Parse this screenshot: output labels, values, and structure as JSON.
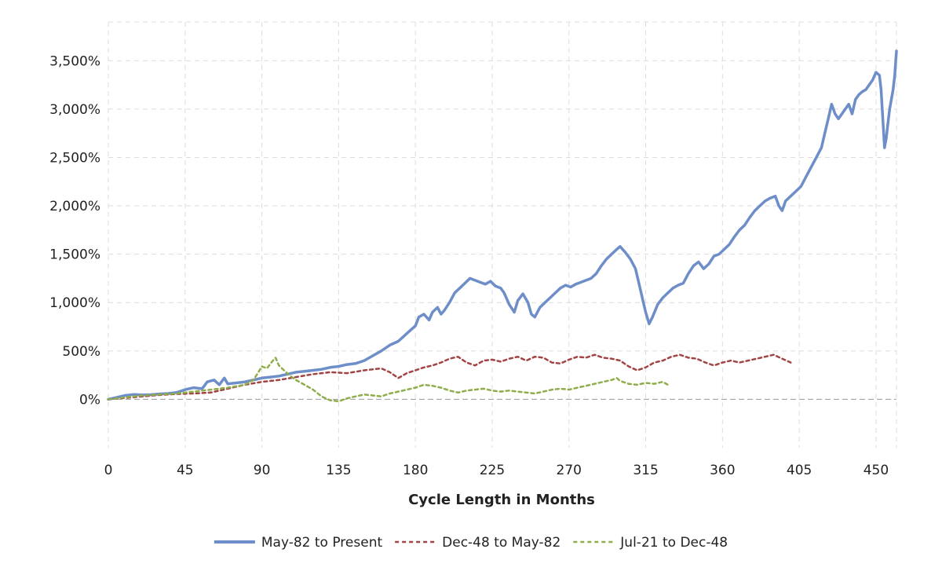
{
  "colors": {
    "background": "#ffffff",
    "grid": "#dcdcdc",
    "zero_line": "#9a9a9a",
    "series_1": "#6d8ec8",
    "series_2": "#a24444",
    "series_3": "#8fad4b"
  },
  "chart_data": {
    "type": "line",
    "title": "",
    "xlabel": "Cycle Length in Months",
    "ylabel": "",
    "xlim": [
      0,
      462
    ],
    "ylim": [
      -500,
      3900
    ],
    "x_ticks": [
      0,
      45,
      90,
      135,
      180,
      225,
      270,
      315,
      360,
      405,
      450
    ],
    "x_tick_labels": [
      "0",
      "45",
      "90",
      "135",
      "180",
      "225",
      "270",
      "315",
      "360",
      "405",
      "450"
    ],
    "y_ticks": [
      0,
      500,
      1000,
      1500,
      2000,
      2500,
      3000,
      3500
    ],
    "y_tick_labels": [
      "0%",
      "500%",
      "1,000%",
      "1,500%",
      "2,000%",
      "2,500%",
      "3,000%",
      "3,500%"
    ],
    "grid": true,
    "legend_position": "bottom",
    "series": [
      {
        "name": "May-82 to Present",
        "style": "solid",
        "color": "#6d8ec8",
        "points": [
          [
            0,
            0
          ],
          [
            5,
            20
          ],
          [
            10,
            40
          ],
          [
            15,
            50
          ],
          [
            20,
            45
          ],
          [
            25,
            48
          ],
          [
            30,
            55
          ],
          [
            35,
            60
          ],
          [
            40,
            70
          ],
          [
            45,
            100
          ],
          [
            50,
            120
          ],
          [
            55,
            110
          ],
          [
            58,
            180
          ],
          [
            62,
            200
          ],
          [
            65,
            150
          ],
          [
            68,
            220
          ],
          [
            70,
            160
          ],
          [
            75,
            170
          ],
          [
            80,
            180
          ],
          [
            85,
            200
          ],
          [
            90,
            220
          ],
          [
            95,
            230
          ],
          [
            100,
            240
          ],
          [
            105,
            260
          ],
          [
            110,
            280
          ],
          [
            115,
            290
          ],
          [
            120,
            300
          ],
          [
            125,
            310
          ],
          [
            130,
            330
          ],
          [
            135,
            340
          ],
          [
            140,
            360
          ],
          [
            145,
            370
          ],
          [
            150,
            400
          ],
          [
            155,
            450
          ],
          [
            160,
            500
          ],
          [
            165,
            560
          ],
          [
            170,
            600
          ],
          [
            175,
            680
          ],
          [
            180,
            760
          ],
          [
            182,
            850
          ],
          [
            185,
            880
          ],
          [
            188,
            820
          ],
          [
            190,
            900
          ],
          [
            193,
            950
          ],
          [
            195,
            880
          ],
          [
            197,
            920
          ],
          [
            200,
            1000
          ],
          [
            203,
            1100
          ],
          [
            206,
            1150
          ],
          [
            209,
            1200
          ],
          [
            212,
            1250
          ],
          [
            215,
            1230
          ],
          [
            218,
            1210
          ],
          [
            221,
            1190
          ],
          [
            224,
            1220
          ],
          [
            227,
            1170
          ],
          [
            230,
            1150
          ],
          [
            232,
            1100
          ],
          [
            235,
            980
          ],
          [
            238,
            900
          ],
          [
            240,
            1020
          ],
          [
            243,
            1090
          ],
          [
            246,
            1000
          ],
          [
            248,
            880
          ],
          [
            250,
            850
          ],
          [
            253,
            950
          ],
          [
            256,
            1000
          ],
          [
            259,
            1050
          ],
          [
            262,
            1100
          ],
          [
            265,
            1150
          ],
          [
            268,
            1180
          ],
          [
            271,
            1160
          ],
          [
            274,
            1190
          ],
          [
            277,
            1210
          ],
          [
            280,
            1230
          ],
          [
            283,
            1250
          ],
          [
            286,
            1300
          ],
          [
            289,
            1380
          ],
          [
            292,
            1450
          ],
          [
            295,
            1500
          ],
          [
            298,
            1550
          ],
          [
            300,
            1580
          ],
          [
            303,
            1520
          ],
          [
            306,
            1450
          ],
          [
            309,
            1350
          ],
          [
            311,
            1200
          ],
          [
            313,
            1050
          ],
          [
            315,
            900
          ],
          [
            317,
            780
          ],
          [
            319,
            850
          ],
          [
            322,
            980
          ],
          [
            325,
            1050
          ],
          [
            328,
            1100
          ],
          [
            331,
            1150
          ],
          [
            334,
            1180
          ],
          [
            337,
            1200
          ],
          [
            340,
            1300
          ],
          [
            343,
            1380
          ],
          [
            346,
            1420
          ],
          [
            349,
            1350
          ],
          [
            352,
            1400
          ],
          [
            355,
            1480
          ],
          [
            358,
            1500
          ],
          [
            361,
            1550
          ],
          [
            364,
            1600
          ],
          [
            367,
            1680
          ],
          [
            370,
            1750
          ],
          [
            373,
            1800
          ],
          [
            376,
            1880
          ],
          [
            379,
            1950
          ],
          [
            382,
            2000
          ],
          [
            385,
            2050
          ],
          [
            388,
            2080
          ],
          [
            391,
            2100
          ],
          [
            393,
            2000
          ],
          [
            395,
            1950
          ],
          [
            397,
            2050
          ],
          [
            400,
            2100
          ],
          [
            403,
            2150
          ],
          [
            406,
            2200
          ],
          [
            409,
            2300
          ],
          [
            412,
            2400
          ],
          [
            415,
            2500
          ],
          [
            418,
            2600
          ],
          [
            420,
            2750
          ],
          [
            422,
            2900
          ],
          [
            424,
            3050
          ],
          [
            426,
            2950
          ],
          [
            428,
            2900
          ],
          [
            430,
            2950
          ],
          [
            432,
            3000
          ],
          [
            434,
            3050
          ],
          [
            436,
            2950
          ],
          [
            438,
            3100
          ],
          [
            440,
            3150
          ],
          [
            442,
            3180
          ],
          [
            444,
            3200
          ],
          [
            446,
            3250
          ],
          [
            448,
            3300
          ],
          [
            450,
            3380
          ],
          [
            452,
            3350
          ],
          [
            453,
            3200
          ],
          [
            454,
            2900
          ],
          [
            455,
            2600
          ],
          [
            456,
            2700
          ],
          [
            457,
            2850
          ],
          [
            458,
            3000
          ],
          [
            459,
            3100
          ],
          [
            460,
            3200
          ],
          [
            461,
            3350
          ],
          [
            462,
            3600
          ]
        ]
      },
      {
        "name": "Dec-48 to May-82",
        "style": "dashed",
        "color": "#a24444",
        "points": [
          [
            0,
            0
          ],
          [
            10,
            15
          ],
          [
            20,
            30
          ],
          [
            30,
            45
          ],
          [
            40,
            55
          ],
          [
            50,
            60
          ],
          [
            60,
            70
          ],
          [
            70,
            110
          ],
          [
            80,
            150
          ],
          [
            90,
            180
          ],
          [
            100,
            200
          ],
          [
            110,
            230
          ],
          [
            120,
            260
          ],
          [
            130,
            280
          ],
          [
            140,
            270
          ],
          [
            150,
            300
          ],
          [
            160,
            320
          ],
          [
            165,
            280
          ],
          [
            170,
            220
          ],
          [
            175,
            270
          ],
          [
            180,
            300
          ],
          [
            185,
            330
          ],
          [
            190,
            350
          ],
          [
            195,
            380
          ],
          [
            200,
            420
          ],
          [
            205,
            440
          ],
          [
            210,
            380
          ],
          [
            215,
            350
          ],
          [
            220,
            400
          ],
          [
            225,
            410
          ],
          [
            230,
            390
          ],
          [
            235,
            420
          ],
          [
            240,
            440
          ],
          [
            245,
            400
          ],
          [
            250,
            440
          ],
          [
            255,
            430
          ],
          [
            260,
            380
          ],
          [
            265,
            370
          ],
          [
            270,
            410
          ],
          [
            275,
            440
          ],
          [
            280,
            430
          ],
          [
            285,
            460
          ],
          [
            290,
            430
          ],
          [
            295,
            420
          ],
          [
            300,
            400
          ],
          [
            305,
            340
          ],
          [
            310,
            300
          ],
          [
            315,
            330
          ],
          [
            320,
            380
          ],
          [
            325,
            400
          ],
          [
            330,
            440
          ],
          [
            335,
            460
          ],
          [
            340,
            430
          ],
          [
            345,
            420
          ],
          [
            350,
            380
          ],
          [
            355,
            350
          ],
          [
            360,
            380
          ],
          [
            365,
            400
          ],
          [
            370,
            380
          ],
          [
            375,
            400
          ],
          [
            380,
            420
          ],
          [
            385,
            440
          ],
          [
            390,
            460
          ],
          [
            395,
            420
          ],
          [
            400,
            380
          ]
        ]
      },
      {
        "name": "Jul-21 to Dec-48",
        "style": "dashed",
        "color": "#8fad4b",
        "points": [
          [
            0,
            0
          ],
          [
            10,
            20
          ],
          [
            20,
            40
          ],
          [
            30,
            50
          ],
          [
            40,
            60
          ],
          [
            50,
            80
          ],
          [
            60,
            100
          ],
          [
            70,
            120
          ],
          [
            80,
            150
          ],
          [
            85,
            200
          ],
          [
            88,
            280
          ],
          [
            90,
            340
          ],
          [
            93,
            320
          ],
          [
            96,
            390
          ],
          [
            98,
            430
          ],
          [
            100,
            350
          ],
          [
            103,
            300
          ],
          [
            106,
            250
          ],
          [
            110,
            200
          ],
          [
            115,
            150
          ],
          [
            120,
            100
          ],
          [
            125,
            30
          ],
          [
            130,
            -10
          ],
          [
            135,
            -20
          ],
          [
            140,
            10
          ],
          [
            145,
            30
          ],
          [
            150,
            50
          ],
          [
            155,
            40
          ],
          [
            160,
            30
          ],
          [
            165,
            60
          ],
          [
            170,
            80
          ],
          [
            175,
            100
          ],
          [
            180,
            120
          ],
          [
            185,
            150
          ],
          [
            190,
            140
          ],
          [
            195,
            120
          ],
          [
            200,
            90
          ],
          [
            205,
            70
          ],
          [
            210,
            90
          ],
          [
            215,
            100
          ],
          [
            220,
            110
          ],
          [
            225,
            90
          ],
          [
            230,
            80
          ],
          [
            235,
            90
          ],
          [
            240,
            80
          ],
          [
            245,
            70
          ],
          [
            250,
            60
          ],
          [
            255,
            80
          ],
          [
            260,
            100
          ],
          [
            265,
            110
          ],
          [
            270,
            100
          ],
          [
            275,
            120
          ],
          [
            280,
            140
          ],
          [
            285,
            160
          ],
          [
            290,
            180
          ],
          [
            295,
            200
          ],
          [
            298,
            220
          ],
          [
            300,
            190
          ],
          [
            305,
            160
          ],
          [
            310,
            150
          ],
          [
            315,
            170
          ],
          [
            320,
            160
          ],
          [
            325,
            180
          ],
          [
            328,
            150
          ]
        ]
      }
    ]
  }
}
